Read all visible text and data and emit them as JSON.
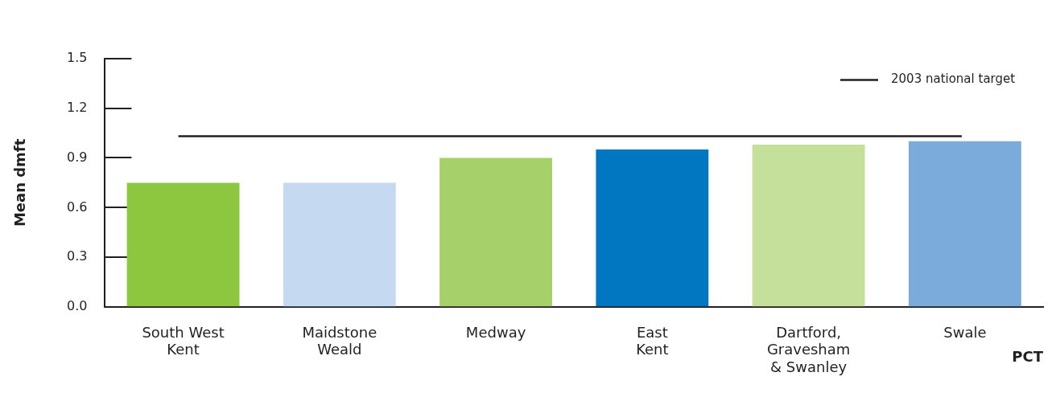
{
  "chart_data": {
    "type": "bar",
    "categories": [
      "South West\nKent",
      "Maidstone\nWeald",
      "Medway",
      "East\nKent",
      "Dartford,\nGravesham\n& Swanley",
      "Swale"
    ],
    "values": [
      0.75,
      0.75,
      0.9,
      0.95,
      0.98,
      1.0
    ],
    "colors": [
      "#8dc63f",
      "#c5d9f1",
      "#a6d06a",
      "#0077c0",
      "#c5e09b",
      "#7aabdb"
    ],
    "xlabel": "PCT",
    "ylabel": "Mean dmft",
    "ylim": [
      0,
      1.5
    ],
    "yticks": [
      {
        "value": 0,
        "label": "0.0"
      },
      0.3,
      0.6,
      0.9,
      1.2,
      1.5
    ],
    "ref_lines": [
      {
        "axis": "y",
        "value": 1.03,
        "label": "2003 national target",
        "color": "#231f20"
      }
    ],
    "legend": "top right",
    "grid": false
  }
}
